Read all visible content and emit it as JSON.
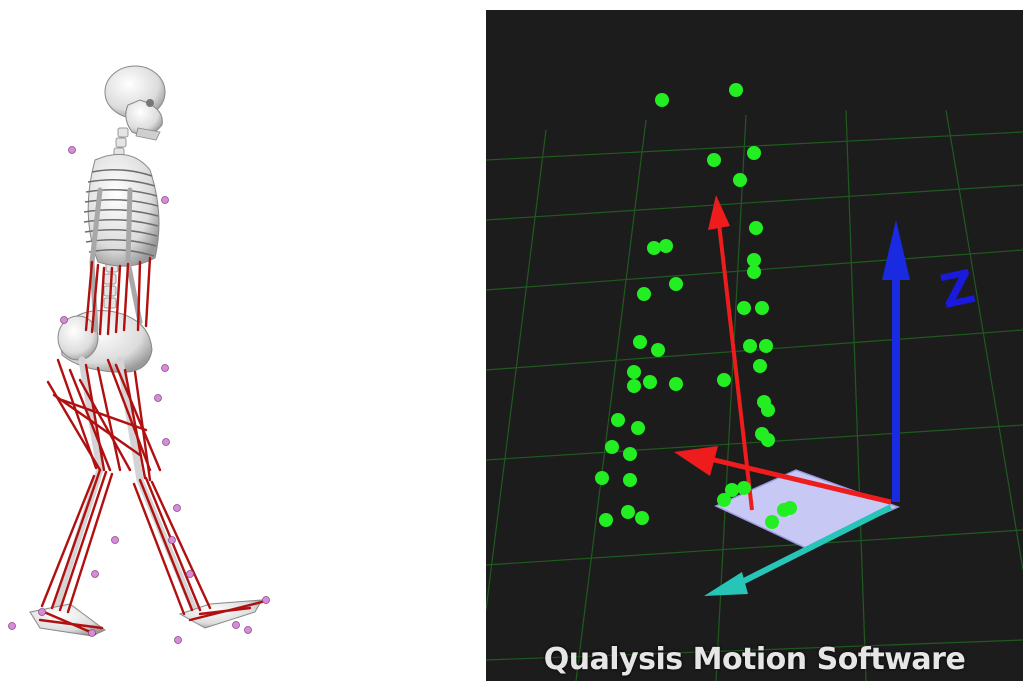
{
  "skeleton_figure": {
    "bone_color": "#e8e8e8",
    "muscle_color": "#b01010",
    "marker_color": "#d88cd8"
  },
  "mocap_viewer": {
    "background": "#1c1c1c",
    "grid_color": "#1f5a1f",
    "marker_color": "#22ee22",
    "axis_labels": {
      "z": "Z"
    },
    "axis_colors": {
      "x": "#ee1c1c",
      "y": "#27c4b8",
      "z": "#1a2ae0"
    },
    "caption": "Qualysis Motion Software"
  }
}
